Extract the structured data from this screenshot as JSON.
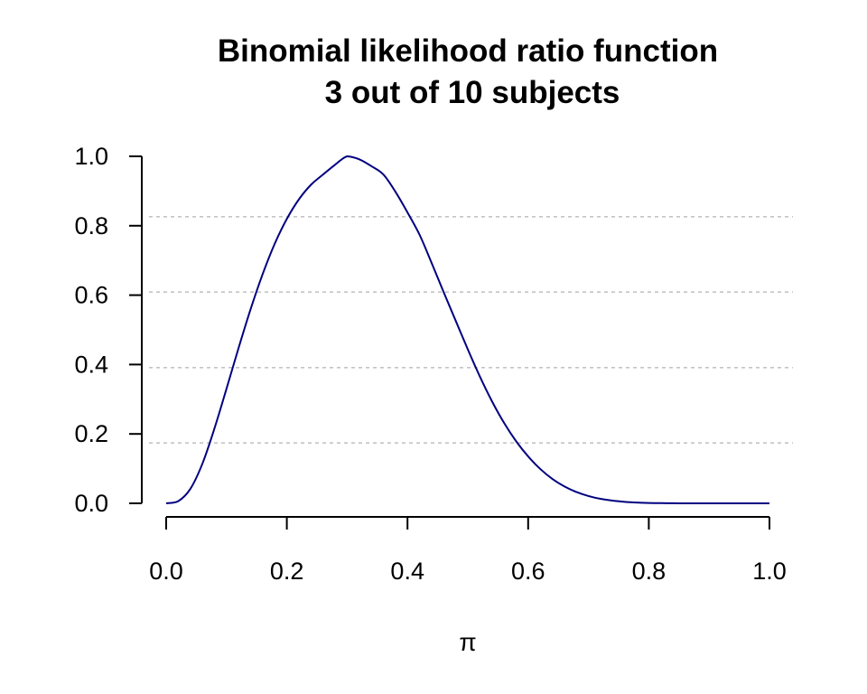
{
  "chart_data": {
    "type": "line",
    "title": "Binomial likelihood ratio function",
    "subtitle": "3 out of 10 subjects",
    "xlabel": "π",
    "ylabel": "",
    "xlim": [
      0,
      1
    ],
    "ylim": [
      0,
      1
    ],
    "x_ticks": [
      "0.0",
      "0.2",
      "0.4",
      "0.6",
      "0.8",
      "1.0"
    ],
    "y_ticks": [
      "0.0",
      "0.2",
      "0.4",
      "0.6",
      "0.8",
      "1.0"
    ],
    "grid": false,
    "legend": "none",
    "reference_lines_y": [
      0.174,
      0.391,
      0.609,
      0.826
    ],
    "series": [
      {
        "color": "#000080",
        "x": [
          0.0,
          0.02,
          0.04,
          0.06,
          0.08,
          0.1,
          0.12,
          0.14,
          0.16,
          0.18,
          0.2,
          0.22,
          0.24,
          0.26,
          0.28,
          0.3,
          0.32,
          0.34,
          0.36,
          0.38,
          0.4,
          0.42,
          0.44,
          0.46,
          0.48,
          0.5,
          0.52,
          0.54,
          0.56,
          0.58,
          0.6,
          0.62,
          0.64,
          0.66,
          0.68,
          0.7,
          0.72,
          0.74,
          0.76,
          0.78,
          0.8,
          0.82,
          0.84,
          0.86,
          0.88,
          0.9,
          0.92,
          0.94,
          0.96,
          0.98,
          1.0
        ],
        "y": [
          0.0,
          0.0062,
          0.0414,
          0.1141,
          0.2156,
          0.3302,
          0.4476,
          0.5596,
          0.6609,
          0.7484,
          0.8196,
          0.876,
          0.918,
          0.9475,
          0.9758,
          1.0,
          0.9913,
          0.9718,
          0.9477,
          0.8979,
          0.8383,
          0.7741,
          0.6928,
          0.6085,
          0.5259,
          0.4437,
          0.3654,
          0.2943,
          0.232,
          0.179,
          0.1352,
          0.0991,
          0.0706,
          0.0488,
          0.0326,
          0.021,
          0.013,
          0.0077,
          0.0043,
          0.0022,
          0.0011,
          0.0005,
          0.0002,
          0.0001,
          0.0,
          0.0,
          0.0,
          0.0,
          0.0,
          0.0,
          0.0
        ]
      }
    ]
  }
}
